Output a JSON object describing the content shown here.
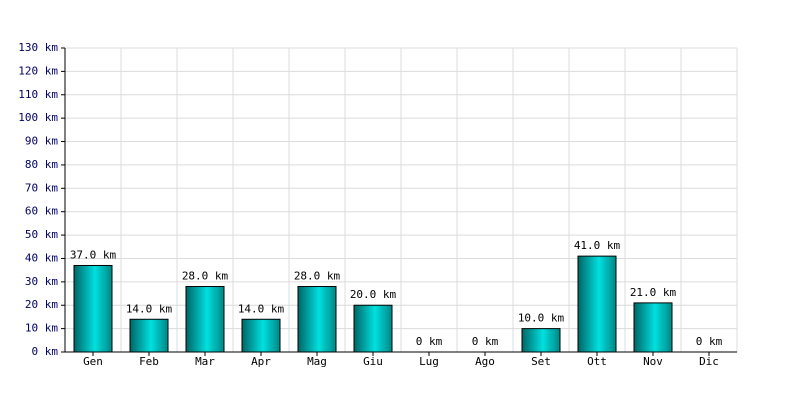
{
  "chart_data": {
    "type": "bar",
    "categories": [
      "Gen",
      "Feb",
      "Mar",
      "Apr",
      "Mag",
      "Giu",
      "Lug",
      "Ago",
      "Set",
      "Ott",
      "Nov",
      "Dic"
    ],
    "values": [
      37,
      14,
      28,
      14,
      28,
      20,
      0,
      0,
      10,
      41,
      21,
      0
    ],
    "value_labels": [
      "37.0 km",
      "14.0 km",
      "28.0 km",
      "14.0 km",
      "28.0 km",
      "20.0 km",
      "0 km",
      "0 km",
      "10.0 km",
      "41.0 km",
      "21.0 km",
      "0 km"
    ],
    "color": "#00e0e0",
    "ylim": [
      0,
      130
    ],
    "yticks": [
      {
        "value": 0,
        "label": "0 km"
      },
      {
        "value": 10,
        "label": "10 km"
      },
      {
        "value": 20,
        "label": "20 km"
      },
      {
        "value": 30,
        "label": "30 km"
      },
      {
        "value": 40,
        "label": "40 km"
      },
      {
        "value": 50,
        "label": "50 km"
      },
      {
        "value": 60,
        "label": "60 km"
      },
      {
        "value": 70,
        "label": "70 km"
      },
      {
        "value": 80,
        "label": "80 km"
      },
      {
        "value": 90,
        "label": "90 km"
      },
      {
        "value": 100,
        "label": "100 km"
      },
      {
        "value": 110,
        "label": "110 km"
      },
      {
        "value": 120,
        "label": "120 km"
      },
      {
        "value": 130,
        "label": "130 km"
      }
    ],
    "grid": true
  }
}
